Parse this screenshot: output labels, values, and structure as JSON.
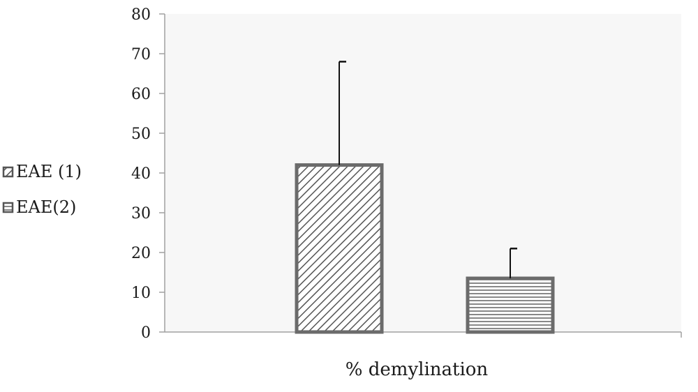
{
  "chart_data": {
    "type": "bar",
    "xlabel": "% demylination",
    "ylabel": "",
    "ylim": [
      0,
      80
    ],
    "yticks": [
      0,
      10,
      20,
      30,
      40,
      50,
      60,
      70,
      80
    ],
    "grid": false,
    "legend_position": "left",
    "series": [
      {
        "name": "EAE (1)",
        "value": 42,
        "error": 26,
        "pattern": "diagonal-hatch"
      },
      {
        "name": "EAE(2)",
        "value": 13.5,
        "error": 7.5,
        "pattern": "horizontal-lines"
      }
    ],
    "colors": {
      "bar_border": "#6b6b6b",
      "axis": "#a0a0a0",
      "error_bar": "#111111",
      "plot_bg": "#f7f7f7"
    }
  }
}
